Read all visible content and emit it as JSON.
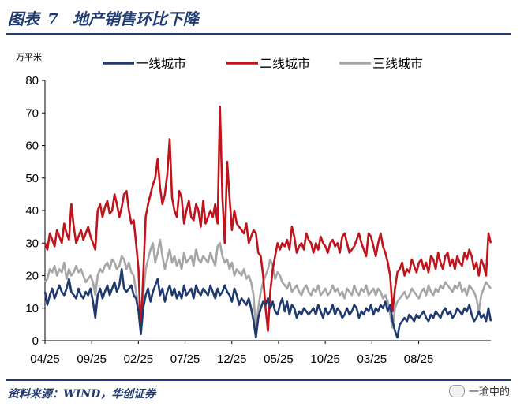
{
  "header": {
    "fig_label": "图表",
    "fig_number": "7",
    "fig_title": "地产销售环比下降"
  },
  "footer": {
    "source": "资料来源：WIND，华创证券",
    "watermark": "一瑜中的"
  },
  "colors": {
    "tier1": "#1f3a6e",
    "tier2": "#c0141c",
    "tier3": "#a6a6a6",
    "accent": "#1f3a6e"
  },
  "chart_data": {
    "type": "line",
    "unit_label": "万平米",
    "ylim": [
      0,
      80
    ],
    "yticks": [
      0,
      10,
      20,
      30,
      40,
      50,
      60,
      70,
      80
    ],
    "x_range": [
      0,
      210
    ],
    "xticks": [
      {
        "label": "04/25",
        "pos": 0
      },
      {
        "label": "09/25",
        "pos": 22
      },
      {
        "label": "02/25",
        "pos": 44
      },
      {
        "label": "07/25",
        "pos": 66
      },
      {
        "label": "12/25",
        "pos": 88
      },
      {
        "label": "05/25",
        "pos": 110
      },
      {
        "label": "10/25",
        "pos": 132
      },
      {
        "label": "03/25",
        "pos": 154
      },
      {
        "label": "08/25",
        "pos": 176
      }
    ],
    "legend": [
      "一线城市",
      "二线城市",
      "三线城市"
    ],
    "series": [
      {
        "name": "一线城市",
        "values": [
          15,
          11,
          14,
          16,
          13,
          15,
          17,
          15,
          14,
          16,
          19,
          15,
          14,
          13,
          16,
          14,
          13,
          15,
          14,
          16,
          12,
          7,
          14,
          16,
          13,
          15,
          17,
          14,
          16,
          18,
          15,
          17,
          22,
          16,
          15,
          16,
          17,
          14,
          13,
          9,
          2,
          10,
          14,
          16,
          12,
          15,
          17,
          19,
          14,
          16,
          12,
          15,
          17,
          14,
          16,
          13,
          15,
          13,
          17,
          14,
          15,
          16,
          13,
          17,
          15,
          14,
          16,
          15,
          14,
          17,
          15,
          13,
          16,
          14,
          15,
          17,
          15,
          14,
          12,
          16,
          14,
          11,
          13,
          12,
          11,
          13,
          10,
          6,
          1,
          7,
          10,
          12,
          11,
          13,
          10,
          12,
          9,
          8,
          11,
          13,
          9,
          12,
          8,
          11,
          10,
          7,
          9,
          8,
          10,
          9,
          8,
          9,
          10,
          8,
          11,
          9,
          7,
          10,
          8,
          9,
          11,
          8,
          10,
          9,
          7,
          8,
          10,
          8,
          9,
          11,
          10,
          7,
          9,
          8,
          10,
          9,
          11,
          8,
          10,
          9,
          11,
          10,
          12,
          9,
          11,
          6,
          3,
          1,
          5,
          6,
          7,
          6,
          8,
          7,
          6,
          8,
          7,
          8,
          9,
          7,
          6,
          8,
          7,
          9,
          8,
          7,
          9,
          10,
          8,
          9,
          7,
          8,
          10,
          9,
          8,
          10,
          9,
          11,
          8,
          6,
          7,
          9,
          7,
          8,
          6,
          10,
          6
        ],
        "color": "#1f3a6e"
      },
      {
        "name": "二线城市",
        "values": [
          30,
          28,
          33,
          31,
          29,
          34,
          32,
          30,
          36,
          33,
          31,
          42,
          35,
          30,
          32,
          34,
          31,
          33,
          35,
          32,
          30,
          28,
          40,
          42,
          38,
          41,
          43,
          39,
          40,
          45,
          42,
          38,
          41,
          45,
          46,
          40,
          36,
          37,
          30,
          22,
          3,
          20,
          38,
          42,
          45,
          48,
          50,
          56,
          47,
          42,
          45,
          51,
          62,
          44,
          40,
          38,
          46,
          44,
          36,
          40,
          43,
          38,
          37,
          42,
          40,
          35,
          43,
          36,
          38,
          40,
          38,
          42,
          36,
          72,
          44,
          30,
          55,
          44,
          34,
          40,
          36,
          35,
          34,
          33,
          36,
          30,
          32,
          34,
          33,
          27,
          26,
          20,
          10,
          3,
          15,
          22,
          26,
          30,
          28,
          30,
          29,
          31,
          28,
          35,
          32,
          27,
          29,
          30,
          28,
          33,
          31,
          30,
          27,
          30,
          28,
          32,
          30,
          29,
          27,
          30,
          31,
          29,
          30,
          27,
          32,
          33,
          30,
          27,
          28,
          29,
          31,
          33,
          30,
          28,
          26,
          33,
          32,
          29,
          26,
          30,
          33,
          29,
          27,
          24,
          20,
          9,
          16,
          21,
          22,
          24,
          20,
          22,
          21,
          25,
          23,
          21,
          24,
          25,
          22,
          24,
          21,
          26,
          25,
          22,
          27,
          24,
          22,
          26,
          27,
          23,
          25,
          22,
          26,
          24,
          23,
          27,
          25,
          28,
          26,
          22,
          24,
          20,
          25,
          23,
          20,
          33,
          30
        ],
        "color": "#c0141c"
      },
      {
        "name": "三线城市",
        "values": [
          18,
          19,
          22,
          21,
          23,
          20,
          22,
          21,
          24,
          19,
          22,
          20,
          21,
          23,
          21,
          22,
          20,
          18,
          19,
          20,
          18,
          14,
          20,
          22,
          21,
          23,
          24,
          22,
          25,
          24,
          22,
          23,
          26,
          25,
          22,
          24,
          21,
          20,
          15,
          10,
          2,
          14,
          22,
          25,
          28,
          30,
          24,
          27,
          31,
          26,
          22,
          25,
          28,
          24,
          26,
          23,
          25,
          22,
          27,
          24,
          25,
          26,
          23,
          28,
          25,
          24,
          26,
          25,
          24,
          27,
          25,
          23,
          29,
          30,
          26,
          24,
          25,
          22,
          24,
          20,
          22,
          21,
          20,
          22,
          19,
          20,
          18,
          14,
          3,
          10,
          15,
          18,
          20,
          22,
          25,
          23,
          19,
          21,
          20,
          18,
          17,
          16,
          18,
          15,
          16,
          17,
          15,
          14,
          16,
          17,
          15,
          14,
          16,
          15,
          17,
          14,
          15,
          16,
          14,
          15,
          17,
          15,
          16,
          14,
          15,
          13,
          16,
          15,
          14,
          17,
          15,
          14,
          16,
          15,
          17,
          14,
          15,
          16,
          14,
          16,
          15,
          13,
          14,
          12,
          8,
          4,
          10,
          12,
          13,
          14,
          15,
          13,
          14,
          16,
          15,
          14,
          13,
          15,
          16,
          14,
          17,
          15,
          14,
          16,
          15,
          17,
          16,
          18,
          17,
          16,
          15,
          17,
          16,
          18,
          15,
          16,
          14,
          17,
          16,
          15,
          13,
          9,
          14,
          16,
          18,
          17,
          16
        ],
        "color": "#a6a6a6"
      }
    ]
  }
}
